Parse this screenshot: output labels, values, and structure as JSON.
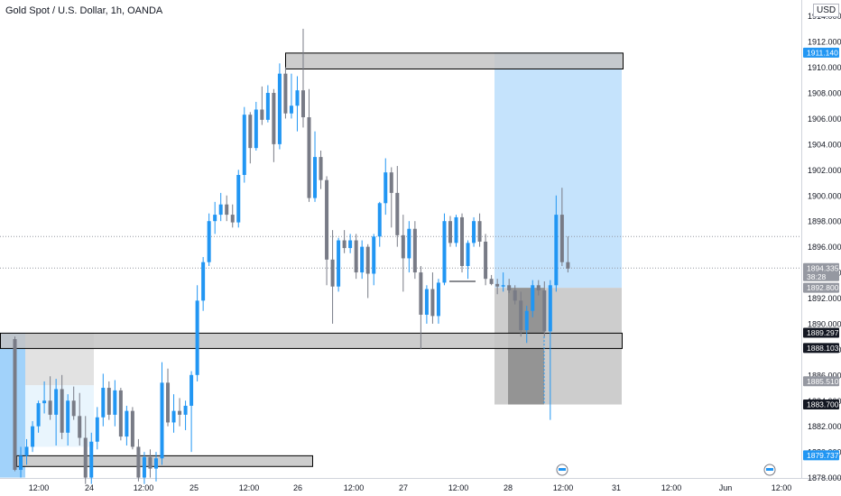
{
  "header": {
    "title": "Gold Spot / U.S. Dollar, 1h, OANDA",
    "currency": "USD"
  },
  "colors": {
    "up": "#2196f3",
    "down": "#787b86",
    "target": "#bbdefb",
    "stop": "#c8c8c8",
    "zone": "#c4c4c4"
  },
  "chart_data": {
    "type": "candlestick",
    "y_axis": {
      "ticks": [
        "1914.000",
        "1912.000",
        "1910.000",
        "1908.000",
        "1906.000",
        "1904.000",
        "1902.000",
        "1900.000",
        "1898.000",
        "1896.000",
        "1894.000",
        "1892.000",
        "1890.000",
        "1888.000",
        "1886.000",
        "1884.000",
        "1882.000",
        "1880.000",
        "1878.000"
      ],
      "ylim": [
        1877.9,
        1914.4
      ]
    },
    "x_axis": {
      "ticks": [
        "12:00",
        "24",
        "12:00",
        "25",
        "12:00",
        "26",
        "12:00",
        "27",
        "12:00",
        "28",
        "12:00",
        "31",
        "12:00",
        "Jun",
        "12:00"
      ]
    },
    "price_labels": [
      {
        "value": "1911.140",
        "style": "blue"
      },
      {
        "value": "1894.335",
        "sub": "38:28",
        "style": "gray"
      },
      {
        "value": "1892.800",
        "style": "gray"
      },
      {
        "value": "1889.297",
        "style": "dark"
      },
      {
        "value": "1888.103",
        "style": "dark"
      },
      {
        "value": "1885.510",
        "style": "gray"
      },
      {
        "value": "1883.700",
        "style": "dark"
      },
      {
        "value": "1879.737",
        "style": "blue"
      }
    ],
    "zones": [
      {
        "name": "supply-zone",
        "from": 1909.9,
        "to": 1911.14
      },
      {
        "name": "demand-zone",
        "from": 1888.103,
        "to": 1889.297
      },
      {
        "name": "lower-zone",
        "from": 1878.9,
        "to": 1879.737
      }
    ],
    "position": {
      "entry": 1892.8,
      "target": 1911.14,
      "stop": 1883.7
    },
    "candles": [
      [
        1888.8,
        1889.0,
        1878.5,
        1878.6
      ],
      [
        1878.6,
        1880.4,
        1878.0,
        1879.7
      ],
      [
        1879.7,
        1881.0,
        1879.0,
        1880.4
      ],
      [
        1880.4,
        1882.4,
        1880.0,
        1882.0
      ],
      [
        1882.0,
        1884.0,
        1881.5,
        1883.8
      ],
      [
        1883.8,
        1885.5,
        1883.0,
        1884.0
      ],
      [
        1884.0,
        1885.9,
        1882.5,
        1882.9
      ],
      [
        1882.9,
        1885.7,
        1880.5,
        1884.9
      ],
      [
        1884.9,
        1886.0,
        1881.0,
        1881.5
      ],
      [
        1881.5,
        1884.5,
        1880.5,
        1884.0
      ],
      [
        1884.0,
        1885.1,
        1882.5,
        1882.8
      ],
      [
        1882.8,
        1884.6,
        1880.5,
        1881.1
      ],
      [
        1881.1,
        1882.8,
        1877.5,
        1878.0
      ],
      [
        1878.0,
        1881.5,
        1877.5,
        1880.8
      ],
      [
        1880.8,
        1883.5,
        1880.2,
        1882.7
      ],
      [
        1882.7,
        1886.1,
        1882.0,
        1885.0
      ],
      [
        1885.0,
        1885.5,
        1882.5,
        1882.9
      ],
      [
        1882.9,
        1885.6,
        1882.0,
        1884.8
      ],
      [
        1884.8,
        1885.0,
        1880.9,
        1881.2
      ],
      [
        1881.2,
        1883.6,
        1880.5,
        1883.2
      ],
      [
        1883.2,
        1883.5,
        1880.2,
        1880.4
      ],
      [
        1880.4,
        1881.0,
        1877.7,
        1878.0
      ],
      [
        1878.0,
        1880.0,
        1877.5,
        1879.6
      ],
      [
        1879.6,
        1880.2,
        1878.0,
        1878.7
      ],
      [
        1878.7,
        1880.0,
        1877.7,
        1879.5
      ],
      [
        1879.5,
        1887.0,
        1879.0,
        1885.4
      ],
      [
        1885.4,
        1886.5,
        1882.0,
        1882.3
      ],
      [
        1882.3,
        1884.5,
        1881.5,
        1883.2
      ],
      [
        1883.2,
        1884.2,
        1882.0,
        1882.9
      ],
      [
        1882.9,
        1884.0,
        1881.7,
        1883.6
      ],
      [
        1883.6,
        1886.3,
        1880.0,
        1886.0
      ],
      [
        1886.0,
        1893.0,
        1885.5,
        1891.8
      ],
      [
        1891.8,
        1895.2,
        1891.0,
        1894.8
      ],
      [
        1894.8,
        1898.6,
        1894.5,
        1898.0
      ],
      [
        1898.0,
        1899.5,
        1897.0,
        1898.5
      ],
      [
        1898.5,
        1900.2,
        1898.0,
        1899.3
      ],
      [
        1899.3,
        1900.0,
        1898.0,
        1898.5
      ],
      [
        1898.5,
        1899.3,
        1897.5,
        1897.9
      ],
      [
        1897.9,
        1902.0,
        1897.5,
        1901.6
      ],
      [
        1901.6,
        1906.9,
        1901.0,
        1906.3
      ],
      [
        1906.3,
        1906.5,
        1902.5,
        1903.7
      ],
      [
        1903.7,
        1907.3,
        1903.5,
        1906.7
      ],
      [
        1906.7,
        1908.5,
        1905.5,
        1905.9
      ],
      [
        1905.9,
        1908.6,
        1905.7,
        1908.0
      ],
      [
        1908.0,
        1908.3,
        1902.6,
        1904.0
      ],
      [
        1904.0,
        1910.3,
        1903.6,
        1909.5
      ],
      [
        1909.5,
        1910.0,
        1906.0,
        1906.4
      ],
      [
        1906.4,
        1909.5,
        1906.0,
        1907.0
      ],
      [
        1907.0,
        1909.3,
        1905.0,
        1908.2
      ],
      [
        1908.2,
        1913.0,
        1905.3,
        1906.1
      ],
      [
        1906.1,
        1908.3,
        1899.5,
        1899.8
      ],
      [
        1899.8,
        1905.0,
        1899.5,
        1903.0
      ],
      [
        1903.0,
        1903.5,
        1900.5,
        1901.2
      ],
      [
        1901.2,
        1901.5,
        1893.0,
        1895.0
      ],
      [
        1895.0,
        1897.3,
        1890.0,
        1892.9
      ],
      [
        1892.9,
        1896.7,
        1892.5,
        1896.5
      ],
      [
        1896.5,
        1897.3,
        1895.5,
        1895.9
      ],
      [
        1895.9,
        1897.0,
        1895.5,
        1896.5
      ],
      [
        1896.5,
        1897.0,
        1893.5,
        1894.0
      ],
      [
        1894.0,
        1896.5,
        1893.5,
        1896.0
      ],
      [
        1896.0,
        1896.2,
        1892.0,
        1893.9
      ],
      [
        1893.9,
        1897.0,
        1893.0,
        1896.8
      ],
      [
        1896.8,
        1899.5,
        1896.0,
        1899.4
      ],
      [
        1899.4,
        1902.9,
        1898.5,
        1901.8
      ],
      [
        1901.8,
        1902.2,
        1897.5,
        1900.2
      ],
      [
        1900.2,
        1902.3,
        1896.0,
        1896.9
      ],
      [
        1896.9,
        1898.5,
        1892.5,
        1895.1
      ],
      [
        1895.1,
        1898.0,
        1894.0,
        1897.4
      ],
      [
        1897.4,
        1898.0,
        1893.5,
        1894.0
      ],
      [
        1894.0,
        1894.5,
        1888.0,
        1890.7
      ],
      [
        1890.7,
        1893.0,
        1890.0,
        1892.7
      ],
      [
        1892.7,
        1894.0,
        1890.0,
        1890.6
      ],
      [
        1890.6,
        1893.5,
        1890.0,
        1893.2
      ],
      [
        1893.2,
        1898.6,
        1893.0,
        1898.0
      ],
      [
        1898.0,
        1898.4,
        1896.0,
        1896.3
      ],
      [
        1896.3,
        1898.5,
        1896.0,
        1898.3
      ],
      [
        1898.3,
        1898.6,
        1894.0,
        1894.5
      ],
      [
        1894.5,
        1896.5,
        1893.5,
        1896.3
      ],
      [
        1896.3,
        1898.3,
        1896.0,
        1898.0
      ],
      [
        1898.0,
        1898.6,
        1896.0,
        1896.4
      ],
      [
        1896.4,
        1897.0,
        1893.0,
        1893.5
      ],
      [
        1893.5,
        1893.8,
        1893.0,
        1893.1
      ],
      [
        1893.1,
        1893.5,
        1892.3,
        1892.9
      ],
      [
        1892.9,
        1894.0,
        1892.5,
        1893.0
      ],
      [
        1893.0,
        1893.5,
        1892.4,
        1892.6
      ],
      [
        1892.6,
        1893.0,
        1891.5,
        1891.8
      ],
      [
        1891.8,
        1892.5,
        1889.0,
        1889.5
      ],
      [
        1889.5,
        1891.4,
        1888.5,
        1891.0
      ],
      [
        1891.0,
        1893.4,
        1890.5,
        1893.0
      ],
      [
        1893.0,
        1893.4,
        1892.2,
        1892.6
      ],
      [
        1892.6,
        1893.3,
        1889.0,
        1889.4
      ],
      [
        1889.4,
        1893.4,
        1882.5,
        1893.0
      ],
      [
        1893.0,
        1900.0,
        1892.5,
        1898.5
      ],
      [
        1898.5,
        1900.6,
        1894.5,
        1894.8
      ],
      [
        1894.8,
        1896.8,
        1894.0,
        1894.3
      ]
    ]
  }
}
